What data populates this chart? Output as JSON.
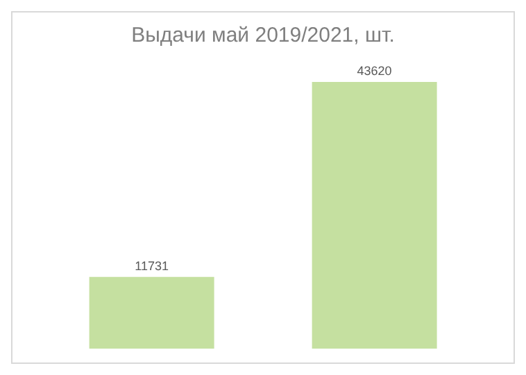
{
  "chart_data": {
    "type": "bar",
    "title": "Выдачи май 2019/2021, шт.",
    "categories": [
      null,
      null
    ],
    "values": [
      11731,
      43620
    ],
    "color": "#c5e0a0",
    "data_labels": true
  }
}
